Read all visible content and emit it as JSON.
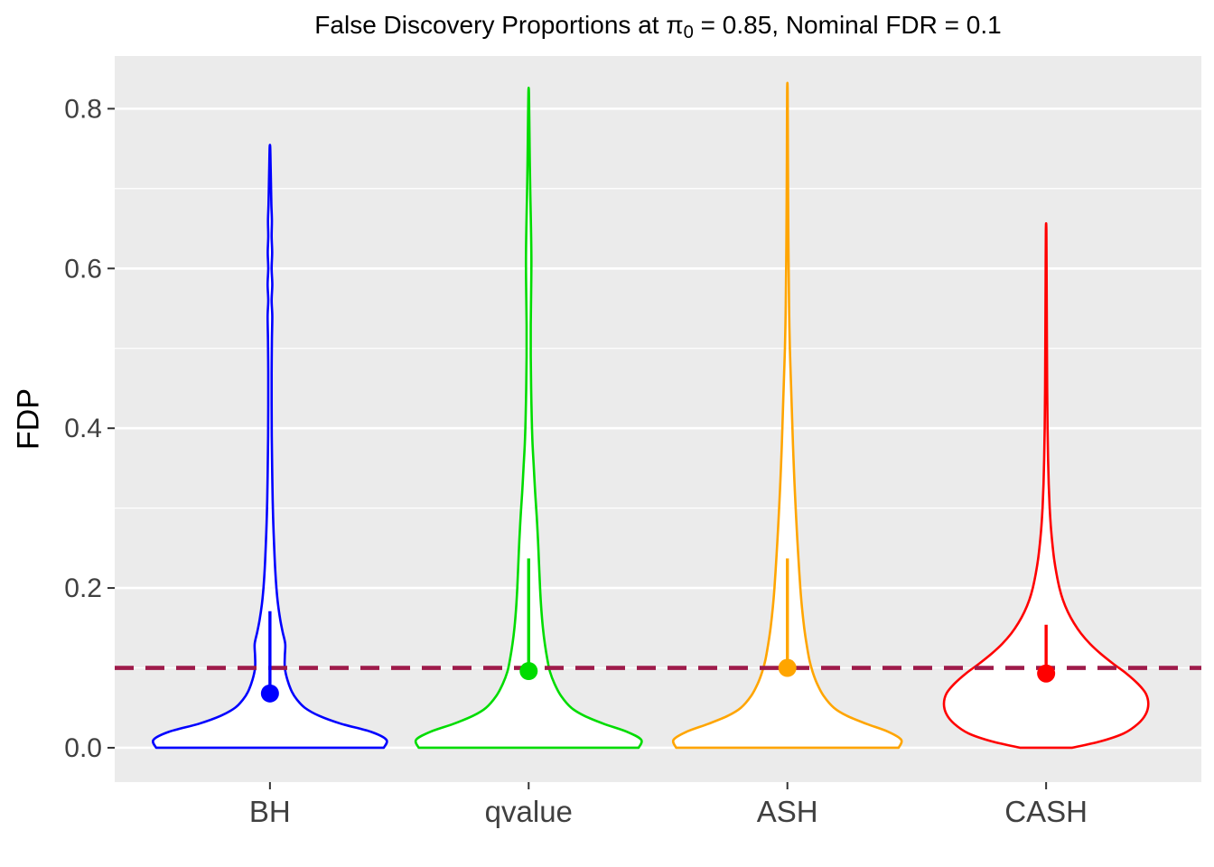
{
  "title": {
    "full": "False Discovery Proportions at π₀ = 0.85, Nominal FDR = 0.1",
    "prefix": "False Discovery Proportions at π",
    "sub": "0",
    "suffix": " = 0.85, Nominal FDR = 0.1"
  },
  "chart_data": {
    "type": "violin",
    "title": "False Discovery Proportions at π₀ = 0.85, Nominal FDR = 0.1",
    "xlabel": "",
    "ylabel": "FDP",
    "categories": [
      "BH",
      "qvalue",
      "ASH",
      "CASH"
    ],
    "ylim": [
      -0.043,
      0.866
    ],
    "yticks": [
      {
        "label": "0.0",
        "value": 0.0
      },
      {
        "label": "0.2",
        "value": 0.2
      },
      {
        "label": "0.4",
        "value": 0.4
      },
      {
        "label": "0.6",
        "value": 0.6
      },
      {
        "label": "0.8",
        "value": 0.8
      }
    ],
    "y_minor_gridlines": [
      0.1,
      0.3,
      0.5,
      0.7
    ],
    "grid": true,
    "legend": "none",
    "panel_background": "#EBEBEB",
    "gridline_color": "#FFFFFF",
    "violin_fill": "#FFFFFF",
    "axis_text_color": "#404040",
    "reference_line": {
      "y": 0.1,
      "style": "dashed",
      "color": "#9E1B4A"
    },
    "profile_format": "[FDP value, half-width as fraction of half category slot]",
    "series": [
      {
        "name": "BH",
        "color": "#0000FF",
        "mean": 0.068,
        "segment_top": 0.171,
        "min": 0.0,
        "max": 0.752,
        "profile": [
          [
            0.0,
            0.88
          ],
          [
            0.01,
            0.9
          ],
          [
            0.02,
            0.78
          ],
          [
            0.03,
            0.55
          ],
          [
            0.04,
            0.38
          ],
          [
            0.05,
            0.27
          ],
          [
            0.06,
            0.21
          ],
          [
            0.07,
            0.17
          ],
          [
            0.085,
            0.135
          ],
          [
            0.1,
            0.115
          ],
          [
            0.115,
            0.115
          ],
          [
            0.13,
            0.118
          ],
          [
            0.145,
            0.098
          ],
          [
            0.16,
            0.08
          ],
          [
            0.18,
            0.062
          ],
          [
            0.2,
            0.05
          ],
          [
            0.225,
            0.04
          ],
          [
            0.25,
            0.033
          ],
          [
            0.28,
            0.026
          ],
          [
            0.31,
            0.021
          ],
          [
            0.35,
            0.017
          ],
          [
            0.39,
            0.014
          ],
          [
            0.43,
            0.013
          ],
          [
            0.47,
            0.013
          ],
          [
            0.51,
            0.015
          ],
          [
            0.54,
            0.018
          ],
          [
            0.56,
            0.013
          ],
          [
            0.58,
            0.018
          ],
          [
            0.6,
            0.013
          ],
          [
            0.62,
            0.017
          ],
          [
            0.64,
            0.013
          ],
          [
            0.66,
            0.015
          ],
          [
            0.68,
            0.011
          ],
          [
            0.705,
            0.008
          ],
          [
            0.73,
            0.005
          ],
          [
            0.752,
            0.002
          ]
        ]
      },
      {
        "name": "qvalue",
        "color": "#00DC00",
        "mean": 0.096,
        "segment_top": 0.237,
        "min": 0.0,
        "max": 0.82,
        "profile": [
          [
            0.0,
            0.85
          ],
          [
            0.01,
            0.87
          ],
          [
            0.02,
            0.76
          ],
          [
            0.03,
            0.58
          ],
          [
            0.04,
            0.43
          ],
          [
            0.05,
            0.33
          ],
          [
            0.065,
            0.25
          ],
          [
            0.08,
            0.2
          ],
          [
            0.095,
            0.165
          ],
          [
            0.11,
            0.145
          ],
          [
            0.13,
            0.125
          ],
          [
            0.15,
            0.11
          ],
          [
            0.175,
            0.097
          ],
          [
            0.2,
            0.088
          ],
          [
            0.23,
            0.08
          ],
          [
            0.26,
            0.072
          ],
          [
            0.29,
            0.062
          ],
          [
            0.32,
            0.05
          ],
          [
            0.35,
            0.04
          ],
          [
            0.38,
            0.03
          ],
          [
            0.41,
            0.024
          ],
          [
            0.45,
            0.019
          ],
          [
            0.49,
            0.016
          ],
          [
            0.53,
            0.016
          ],
          [
            0.57,
            0.019
          ],
          [
            0.61,
            0.021
          ],
          [
            0.65,
            0.018
          ],
          [
            0.69,
            0.013
          ],
          [
            0.73,
            0.009
          ],
          [
            0.77,
            0.006
          ],
          [
            0.82,
            0.002
          ]
        ]
      },
      {
        "name": "ASH",
        "color": "#FFA500",
        "mean": 0.1,
        "segment_top": 0.237,
        "min": 0.0,
        "max": 0.822,
        "profile": [
          [
            0.0,
            0.86
          ],
          [
            0.01,
            0.88
          ],
          [
            0.02,
            0.78
          ],
          [
            0.03,
            0.61
          ],
          [
            0.04,
            0.46
          ],
          [
            0.05,
            0.36
          ],
          [
            0.065,
            0.28
          ],
          [
            0.08,
            0.23
          ],
          [
            0.095,
            0.195
          ],
          [
            0.11,
            0.17
          ],
          [
            0.13,
            0.148
          ],
          [
            0.15,
            0.13
          ],
          [
            0.175,
            0.113
          ],
          [
            0.2,
            0.1
          ],
          [
            0.23,
            0.088
          ],
          [
            0.26,
            0.077
          ],
          [
            0.29,
            0.067
          ],
          [
            0.32,
            0.058
          ],
          [
            0.35,
            0.05
          ],
          [
            0.38,
            0.043
          ],
          [
            0.41,
            0.037
          ],
          [
            0.44,
            0.031
          ],
          [
            0.47,
            0.025
          ],
          [
            0.5,
            0.019
          ],
          [
            0.54,
            0.014
          ],
          [
            0.58,
            0.011
          ],
          [
            0.63,
            0.008
          ],
          [
            0.68,
            0.006
          ],
          [
            0.74,
            0.004
          ],
          [
            0.822,
            0.002
          ]
        ]
      },
      {
        "name": "CASH",
        "color": "#FF0000",
        "mean": 0.093,
        "segment_top": 0.154,
        "min": 0.0,
        "max": 0.648,
        "profile": [
          [
            0.0,
            0.2
          ],
          [
            0.008,
            0.42
          ],
          [
            0.018,
            0.6
          ],
          [
            0.03,
            0.71
          ],
          [
            0.042,
            0.77
          ],
          [
            0.055,
            0.79
          ],
          [
            0.068,
            0.77
          ],
          [
            0.08,
            0.71
          ],
          [
            0.093,
            0.62
          ],
          [
            0.105,
            0.52
          ],
          [
            0.118,
            0.42
          ],
          [
            0.13,
            0.34
          ],
          [
            0.143,
            0.27
          ],
          [
            0.156,
            0.215
          ],
          [
            0.17,
            0.168
          ],
          [
            0.185,
            0.13
          ],
          [
            0.2,
            0.103
          ],
          [
            0.218,
            0.08
          ],
          [
            0.236,
            0.062
          ],
          [
            0.256,
            0.048
          ],
          [
            0.278,
            0.036
          ],
          [
            0.302,
            0.027
          ],
          [
            0.33,
            0.02
          ],
          [
            0.362,
            0.015
          ],
          [
            0.4,
            0.011
          ],
          [
            0.45,
            0.008
          ],
          [
            0.51,
            0.006
          ],
          [
            0.58,
            0.004
          ],
          [
            0.648,
            0.002
          ]
        ]
      }
    ]
  }
}
